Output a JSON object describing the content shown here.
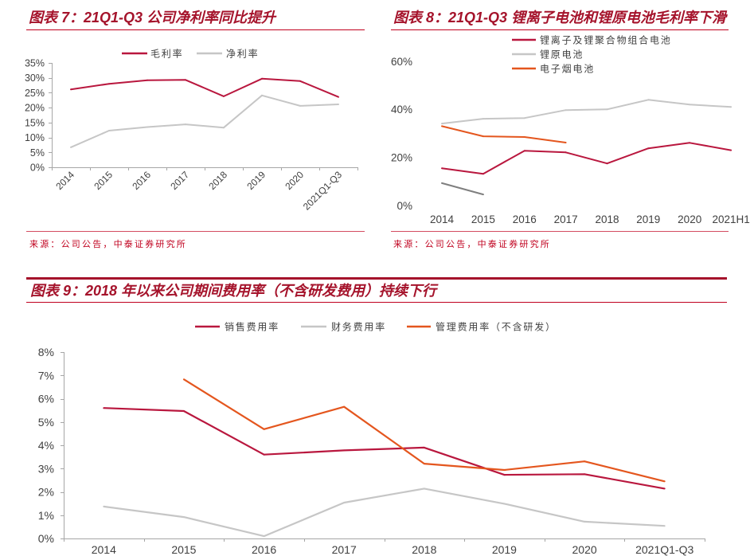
{
  "theme": {
    "accent": "#A5132B",
    "rule": "#C0001E",
    "axis": "#A6A6A6",
    "tick_text": "#404040"
  },
  "chart_data": [
    {
      "type": "line",
      "title": "图表 7：21Q1-Q3 公司净利率同比提升",
      "source": "来源：公司公告，中泰证券研究所",
      "categories": [
        "2014",
        "2015",
        "2016",
        "2017",
        "2018",
        "2019",
        "2020",
        "2021Q1-Q3"
      ],
      "ylim": [
        0,
        35
      ],
      "ytick_labels": [
        "0%",
        "5%",
        "10%",
        "15%",
        "20%",
        "25%",
        "30%",
        "35%"
      ],
      "grid": false,
      "legend": "top-center",
      "series": [
        {
          "name": "毛利率",
          "color": "#B9173E",
          "values": [
            26.1,
            28.0,
            29.2,
            29.3,
            23.8,
            29.7,
            28.9,
            23.6
          ]
        },
        {
          "name": "净利率",
          "color": "#C6C6C6",
          "values": [
            6.7,
            12.3,
            13.5,
            14.4,
            13.3,
            24.1,
            20.6,
            21.1
          ]
        }
      ]
    },
    {
      "type": "line",
      "title": "图表 8：21Q1-Q3 锂离子电池和锂原电池毛利率下滑",
      "source": "来源：公司公告，中泰证券研究所",
      "categories": [
        "2014",
        "2015",
        "2016",
        "2017",
        "2018",
        "2019",
        "2020",
        "2021H1"
      ],
      "ylim": [
        0,
        60
      ],
      "ytick_labels": [
        "0%",
        "20%",
        "40%",
        "60%"
      ],
      "grid": false,
      "legend": "top-right",
      "series": [
        {
          "name": "锂离子及锂聚合物组合电池",
          "color": "#B9173E",
          "values": [
            15.5,
            13.2,
            22.8,
            22.1,
            17.5,
            23.8,
            26.1,
            23.0
          ]
        },
        {
          "name": "锂原电池",
          "color": "#C6C6C6",
          "values": [
            34.1,
            36.1,
            36.4,
            39.7,
            40.0,
            44.0,
            42.0,
            41.0
          ]
        },
        {
          "name": "电子烟电池",
          "color": "#E4561E",
          "values": [
            33.0,
            28.8,
            28.5,
            26.2,
            null,
            null,
            null,
            null
          ]
        },
        {
          "color": "#7F7F7F",
          "values": [
            9.3,
            4.6,
            null,
            null,
            null,
            null,
            null,
            null
          ]
        }
      ]
    },
    {
      "type": "line",
      "title": "图表 9：2018 年以来公司期间费用率（不含研发费用）持续下行",
      "categories": [
        "2014",
        "2015",
        "2016",
        "2017",
        "2018",
        "2019",
        "2020",
        "2021Q1-Q3"
      ],
      "ylim": [
        0,
        8
      ],
      "ytick_labels": [
        "0%",
        "1%",
        "2%",
        "3%",
        "4%",
        "5%",
        "6%",
        "7%",
        "8%"
      ],
      "grid": false,
      "legend": "top-center",
      "series": [
        {
          "name": "销售费用率",
          "color": "#B9173E",
          "values": [
            5.6,
            5.47,
            3.6,
            3.78,
            3.9,
            2.73,
            2.76,
            2.14
          ]
        },
        {
          "name": "财务费用率",
          "color": "#C6C6C6",
          "values": [
            1.37,
            0.92,
            0.1,
            1.54,
            2.14,
            1.49,
            0.72,
            0.54
          ]
        },
        {
          "name": "管理费用率（不含研发）",
          "color": "#E4561E",
          "values": [
            null,
            6.83,
            4.69,
            5.65,
            3.21,
            2.94,
            3.31,
            2.45
          ]
        }
      ]
    }
  ]
}
